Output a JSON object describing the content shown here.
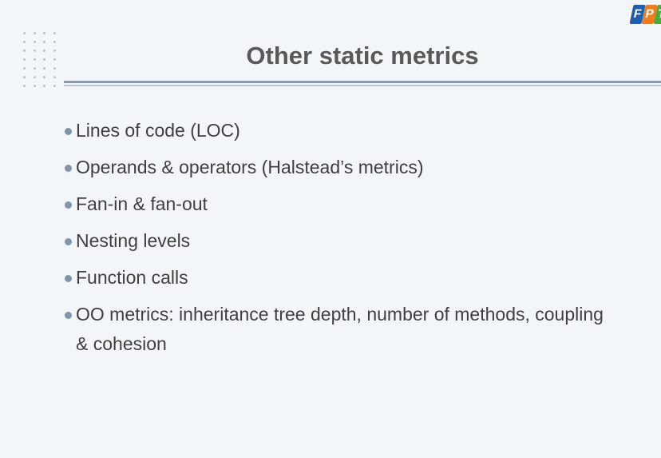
{
  "slide": {
    "title": "Other static metrics",
    "bullets": [
      "Lines of code (LOC)",
      "Operands & operators (Halstead’s metrics)",
      "Fan-in & fan-out",
      "Nesting levels",
      "Function calls",
      "OO metrics: inheritance tree depth, number of methods, coupling & cohesion"
    ]
  },
  "logo": {
    "letters": [
      "F",
      "P",
      "T"
    ]
  },
  "colors": {
    "background": "#f3f6f8",
    "title": "#595959",
    "text": "#3f3f3f",
    "bullet": "#7f96a8",
    "rule": "#8a9db0",
    "logo_blue": "#1d5fae",
    "logo_orange": "#f07d1a",
    "logo_green": "#4bab3f"
  }
}
